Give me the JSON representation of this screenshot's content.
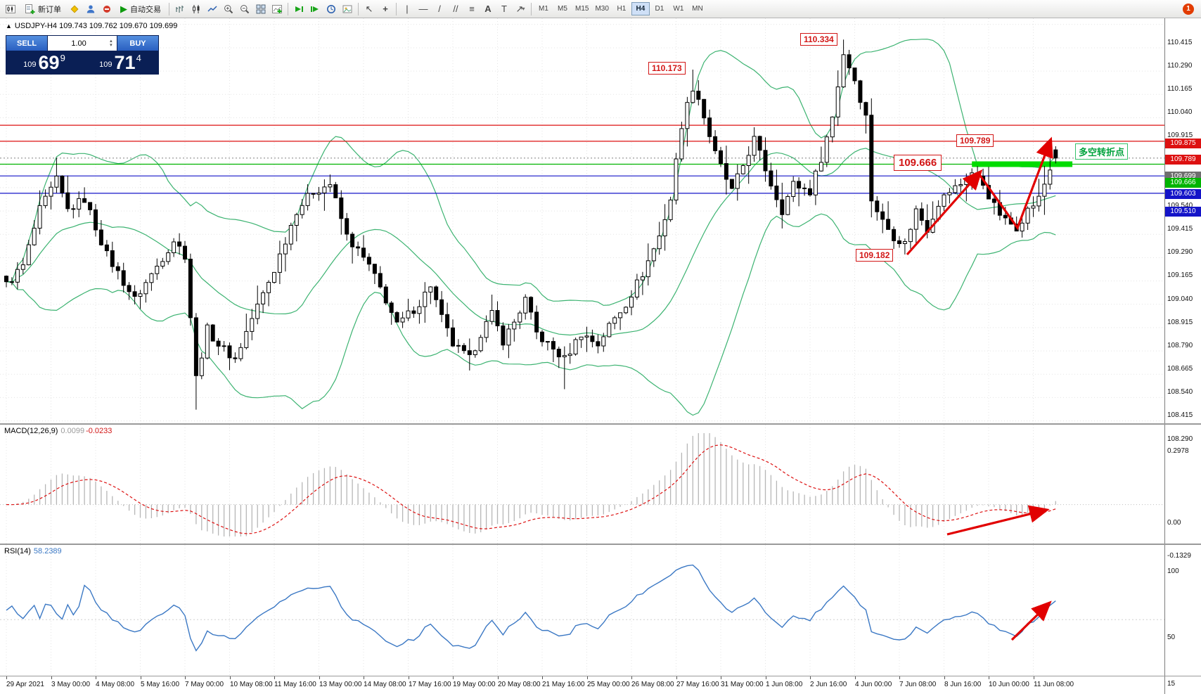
{
  "toolbar": {
    "new_order_label": "新订单",
    "autotrade_label": "自动交易",
    "timeframes": [
      "M1",
      "M5",
      "M15",
      "M30",
      "H1",
      "H4",
      "D1",
      "W1",
      "MN"
    ],
    "active_timeframe": "H4",
    "notification_badge": "1",
    "icons": {
      "cursor": "↖",
      "crosshair": "+",
      "vertical_line": "|",
      "horizontal_line": "―",
      "trendline": "/",
      "channel": "//",
      "fibo": "≡",
      "text": "A",
      "label": "T",
      "arrows": "↗",
      "dropdown": "▾",
      "play": "▶"
    }
  },
  "chart_header": {
    "collapse_icon": "▲",
    "symbol": "USDJPY-H4",
    "ohlc": "109.743 109.762 109.670 109.699"
  },
  "quote_panel": {
    "sell_label": "SELL",
    "buy_label": "BUY",
    "volume": "1.00",
    "spin_up": "▴",
    "spin_down": "▾",
    "sell_small": "109",
    "sell_big": "69",
    "sell_sup": "9",
    "buy_small": "109",
    "buy_big": "71",
    "buy_sup": "4"
  },
  "price_axis": {
    "ticks": [
      "110.415",
      "110.290",
      "110.165",
      "110.040",
      "109.915",
      "109.790",
      "109.665",
      "109.540",
      "109.415",
      "109.290",
      "109.165",
      "109.040",
      "108.915",
      "108.790",
      "108.665",
      "108.540",
      "108.415",
      "108.290"
    ]
  },
  "time_axis": {
    "labels": [
      "29 Apr 2021",
      "3 May 00:00",
      "4 May 08:00",
      "5 May 16:00",
      "7 May 00:00",
      "10 May 08:00",
      "11 May 16:00",
      "13 May 00:00",
      "14 May 08:00",
      "17 May 16:00",
      "19 May 00:00",
      "20 May 08:00",
      "21 May 16:00",
      "25 May 00:00",
      "26 May 08:00",
      "27 May 16:00",
      "31 May 00:00",
      "1 Jun 08:00",
      "2 Jun 16:00",
      "4 Jun 00:00",
      "7 Jun 08:00",
      "8 Jun 16:00",
      "10 Jun 00:00",
      "11 Jun 08:00"
    ]
  },
  "callouts": [
    {
      "text": "110.334"
    },
    {
      "text": "110.173"
    },
    {
      "text": "109.789"
    },
    {
      "text": "109.666"
    },
    {
      "text": "109.182"
    }
  ],
  "annotations": {
    "pivot_text": "多空转折点"
  },
  "macd_panel": {
    "label": "MACD(12,26,9)",
    "value_main": "0.0099",
    "value_signal": "-0.0233",
    "scale_top": "0.2978",
    "scale_zero": "0.00",
    "scale_bottom": "-0.1329"
  },
  "rsi_panel": {
    "label": "RSI(14)",
    "value": "58.2389",
    "scale_top": "100",
    "scale_mid": "50",
    "scale_bottom": "15"
  },
  "chart_data": {
    "type": "candlestick",
    "symbol": "USDJPY",
    "timeframe": "H4",
    "last_ohlc": {
      "open": 109.743,
      "high": 109.762,
      "low": 109.67,
      "close": 109.699
    },
    "bid": 109.699,
    "ask": 109.714,
    "y_axis": {
      "min": 108.29,
      "max": 110.415,
      "tick": 0.125
    },
    "candle_count": 189,
    "price_path": [
      [
        0,
        109.02
      ],
      [
        3,
        109.12
      ],
      [
        6,
        109.42
      ],
      [
        9,
        109.58
      ],
      [
        11,
        109.42
      ],
      [
        14,
        109.48
      ],
      [
        18,
        109.18
      ],
      [
        23,
        108.94
      ],
      [
        27,
        109.12
      ],
      [
        30,
        109.26
      ],
      [
        32,
        109.18
      ],
      [
        34,
        108.52
      ],
      [
        36,
        108.78
      ],
      [
        38,
        108.7
      ],
      [
        41,
        108.62
      ],
      [
        44,
        108.84
      ],
      [
        48,
        109.1
      ],
      [
        52,
        109.42
      ],
      [
        55,
        109.52
      ],
      [
        58,
        109.56
      ],
      [
        61,
        109.28
      ],
      [
        65,
        109.12
      ],
      [
        68,
        108.94
      ],
      [
        70,
        108.8
      ],
      [
        72,
        108.86
      ],
      [
        74,
        108.92
      ],
      [
        76,
        109.02
      ],
      [
        78,
        108.84
      ],
      [
        80,
        108.7
      ],
      [
        83,
        108.62
      ],
      [
        85,
        108.76
      ],
      [
        87,
        108.86
      ],
      [
        89,
        108.72
      ],
      [
        91,
        108.82
      ],
      [
        93,
        108.94
      ],
      [
        95,
        108.76
      ],
      [
        97,
        108.7
      ],
      [
        100,
        108.62
      ],
      [
        103,
        108.76
      ],
      [
        106,
        108.7
      ],
      [
        108,
        108.8
      ],
      [
        111,
        108.92
      ],
      [
        114,
        109.08
      ],
      [
        117,
        109.28
      ],
      [
        119,
        109.48
      ],
      [
        121,
        109.88
      ],
      [
        123,
        110.08
      ],
      [
        124,
        110.02
      ],
      [
        127,
        109.72
      ],
      [
        130,
        109.52
      ],
      [
        132,
        109.66
      ],
      [
        134,
        109.8
      ],
      [
        137,
        109.56
      ],
      [
        139,
        109.42
      ],
      [
        141,
        109.56
      ],
      [
        144,
        109.52
      ],
      [
        146,
        109.7
      ],
      [
        148,
        109.92
      ],
      [
        150,
        110.26
      ],
      [
        152,
        110.12
      ],
      [
        154,
        109.92
      ],
      [
        155,
        109.48
      ],
      [
        157,
        109.36
      ],
      [
        159,
        109.28
      ],
      [
        161,
        109.24
      ],
      [
        163,
        109.42
      ],
      [
        165,
        109.32
      ],
      [
        167,
        109.46
      ],
      [
        169,
        109.52
      ],
      [
        171,
        109.56
      ],
      [
        173,
        109.62
      ],
      [
        175,
        109.56
      ],
      [
        177,
        109.44
      ],
      [
        179,
        109.36
      ],
      [
        181,
        109.33
      ],
      [
        183,
        109.42
      ],
      [
        185,
        109.48
      ],
      [
        187,
        109.64
      ],
      [
        188,
        109.7
      ]
    ],
    "wick_anchors": [
      {
        "i": 9,
        "high": 109.7
      },
      {
        "i": 34,
        "low": 108.35
      },
      {
        "i": 83,
        "low": 108.56
      },
      {
        "i": 100,
        "low": 108.46
      },
      {
        "i": 123,
        "high": 110.173
      },
      {
        "i": 150,
        "high": 110.334
      },
      {
        "i": 161,
        "low": 109.182
      },
      {
        "i": 187,
        "high": 109.789
      }
    ],
    "levels": [
      {
        "price": 109.875,
        "color": "#dd1111",
        "style": "solid",
        "tag": true
      },
      {
        "price": 109.789,
        "color": "#dd1111",
        "style": "solid",
        "tag": true
      },
      {
        "price": 109.699,
        "color": "#8f8f8f",
        "style": "dot",
        "tag": true,
        "tag_color": "#6e6e6e"
      },
      {
        "price": 109.666,
        "color": "#00b400",
        "style": "solid",
        "tag": true
      },
      {
        "price": 109.603,
        "color": "#1414c8",
        "style": "solid",
        "tag": true
      },
      {
        "price": 109.51,
        "color": "#1414c8",
        "style": "solid",
        "tag": true
      }
    ],
    "support_zone": {
      "price": 109.666,
      "from_bar": 173,
      "to_bar": 191,
      "color": "#00dc00"
    },
    "indicators": {
      "bollinger": {
        "period": 20,
        "deviation": 2,
        "color": "#3cb371"
      },
      "macd": {
        "fast": 12,
        "slow": 26,
        "signal": 9,
        "hist_color": "#b6b6b6",
        "signal_color": "#dd1111",
        "scale": [
          0.2978,
          -0.1329
        ]
      },
      "rsi": {
        "period": 14,
        "color": "#3b78c4",
        "scale": [
          15,
          100
        ]
      }
    },
    "trend_arrows": [
      {
        "panel": "main",
        "points": [
          [
            1290,
            336
          ],
          [
            1392,
            221
          ]
        ]
      },
      {
        "panel": "main",
        "points": [
          [
            1392,
            221
          ],
          [
            1447,
            298
          ],
          [
            1493,
            176
          ]
        ]
      },
      {
        "panel": "macd",
        "points": [
          [
            1347,
            734
          ],
          [
            1485,
            700
          ]
        ]
      },
      {
        "panel": "rsi",
        "points": [
          [
            1439,
            884
          ],
          [
            1490,
            834
          ]
        ]
      }
    ]
  }
}
